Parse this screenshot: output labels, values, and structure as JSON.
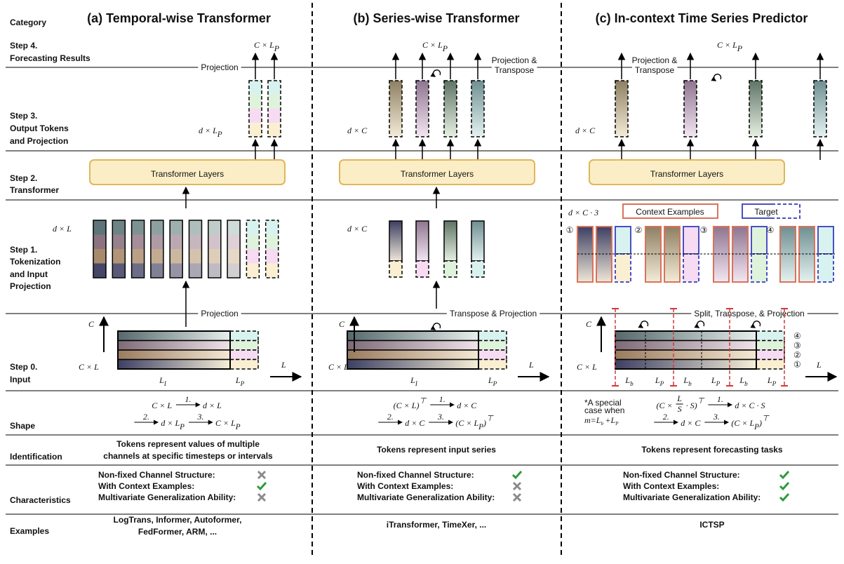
{
  "row_labels": {
    "category": "Category",
    "step4": [
      "Step 4.",
      "Forecasting Results"
    ],
    "step3": [
      "Step 3.",
      "Output Tokens",
      "and Projection"
    ],
    "step2": [
      "Step 2.",
      "Transformer"
    ],
    "step1": [
      "Step 1.",
      "Tokenization",
      "and Input",
      "Projection"
    ],
    "step0": [
      "Step 0.",
      "Input"
    ],
    "shape": "Shape",
    "identification": "Identification",
    "characteristics": "Characteristics",
    "examples": "Examples"
  },
  "columns": [
    {
      "title": "(a) Temporal-wise Transformer",
      "output": {
        "text": "C × L",
        "sub": "P"
      },
      "output_projection": [
        "Projection"
      ],
      "output_tokens": {
        "text": "d × L",
        "sub": "P"
      },
      "transformer": "Transformer Layers",
      "input_tokens": {
        "text": "d × L"
      },
      "input_projection": [
        "Projection"
      ],
      "channel_axis": "C",
      "input_shape": {
        "text": "C × L"
      },
      "time_axis": "L",
      "input_segments": [
        {
          "text": "L",
          "sub": "I"
        },
        {
          "text": "L",
          "sub": "P"
        }
      ],
      "shape": [
        [
          {
            "text": "C × L"
          },
          {
            "arrow": "1."
          },
          {
            "text": "d × L"
          }
        ],
        [
          {
            "arrow": "2."
          },
          {
            "text": "d × L",
            "sub": "P"
          },
          {
            "arrow": "3."
          },
          {
            "text": "C × L",
            "sub": "P"
          }
        ]
      ],
      "identification": [
        "Tokens represent values of multiple",
        "channels at specific timesteps or intervals"
      ],
      "characteristics": [
        {
          "label": "Non-fixed Channel Structure:",
          "value": false
        },
        {
          "label": "With Context Examples:",
          "value": true
        },
        {
          "label": "Multivariate Generalization Ability:",
          "value": false
        }
      ],
      "examples": [
        "LogTrans, Informer, Autoformer,",
        "FedFormer, ARM, ..."
      ]
    },
    {
      "title": "(b) Series-wise Transformer",
      "output": {
        "text": "C × L",
        "sub": "P"
      },
      "output_projection": [
        "Projection &",
        "Transpose"
      ],
      "output_tokens": {
        "text": "d × C"
      },
      "transformer": "Transformer Layers",
      "input_tokens": {
        "text": "d × C"
      },
      "input_projection": [
        "Transpose & Projection"
      ],
      "channel_axis": "C",
      "input_shape": {
        "text": "C × L"
      },
      "time_axis": "L",
      "input_segments": [
        {
          "text": "L",
          "sub": "I"
        },
        {
          "text": "L",
          "sub": "P"
        }
      ],
      "shape": [
        [
          {
            "text": "(C × L)",
            "sup": "⊤"
          },
          {
            "arrow": "1."
          },
          {
            "text": "d × C"
          }
        ],
        [
          {
            "arrow": "2."
          },
          {
            "text": "d × C"
          },
          {
            "arrow": "3."
          },
          {
            "text": "(C × L",
            "sub": "P",
            "tail": ")",
            "sup": "⊤"
          }
        ]
      ],
      "identification": [
        "Tokens represent input series"
      ],
      "characteristics": [
        {
          "label": "Non-fixed Channel Structure:",
          "value": true
        },
        {
          "label": "With Context Examples:",
          "value": false
        },
        {
          "label": "Multivariate Generalization Ability:",
          "value": false
        }
      ],
      "examples": [
        "iTransformer, TimeXer, ..."
      ]
    },
    {
      "title": "(c) In-context Time Series Predictor",
      "output": {
        "text": "C × L",
        "sub": "P"
      },
      "output_projection": [
        "Projection &",
        "Transpose"
      ],
      "output_tokens": {
        "text": "d × C"
      },
      "transformer": "Transformer Layers",
      "input_tokens": {
        "text": "d × C · 3"
      },
      "context_label": "Context Examples",
      "target_label": "Target",
      "group_markers": [
        "①",
        "②",
        "③",
        "④"
      ],
      "input_projection": [
        "Split, Transpose, & Projection"
      ],
      "channel_axis": "C",
      "input_shape": {
        "text": "C × L"
      },
      "time_axis": "L",
      "input_segments": [
        {
          "text": "L",
          "sub": "b"
        },
        {
          "text": "L",
          "sub": "P"
        },
        {
          "text": "L",
          "sub": "b"
        },
        {
          "text": "L",
          "sub": "P"
        },
        {
          "text": "L",
          "sub": "b"
        },
        {
          "text": "L",
          "sub": "P"
        }
      ],
      "channel_markers": [
        "④",
        "③",
        "②",
        "①"
      ],
      "shape": [
        [
          {
            "text": "(C ×"
          },
          {
            "num": "L",
            "den": "S"
          },
          {
            "text": "· S)",
            "sup": "⊤"
          },
          {
            "arrow": "1."
          },
          {
            "text": "d × C · S"
          }
        ],
        [
          {
            "arrow": "2."
          },
          {
            "text": "d × C"
          },
          {
            "arrow": "3."
          },
          {
            "text": "(C × L",
            "sub": "P",
            "tail": ")",
            "sup": "⊤"
          }
        ]
      ],
      "note": [
        "*A special",
        "case when"
      ],
      "note_formula": [
        {
          "text": "m=L",
          "sub": "b"
        },
        {
          "text": "+L",
          "sub": "P"
        }
      ],
      "identification": [
        "Tokens represent forecasting tasks"
      ],
      "characteristics": [
        {
          "label": "Non-fixed Channel Structure:",
          "value": true
        },
        {
          "label": "With Context Examples:",
          "value": true
        },
        {
          "label": "Multivariate Generalization Ability:",
          "value": true
        }
      ],
      "examples": [
        "ICTSP"
      ]
    }
  ]
}
